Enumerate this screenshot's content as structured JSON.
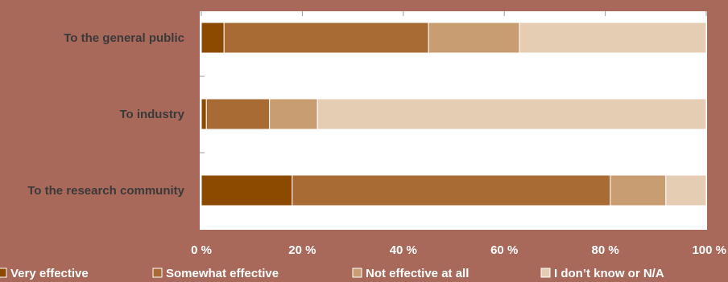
{
  "chart_data": {
    "type": "bar",
    "orientation": "horizontal",
    "stacked": true,
    "percent": true,
    "categories": [
      "To the general public",
      "To industry",
      "To the research community"
    ],
    "series": [
      {
        "name": "Very effective",
        "values": [
          4.5,
          1,
          18
        ],
        "color": "#8b4a00"
      },
      {
        "name": "Somewhat effective",
        "values": [
          40.5,
          12.5,
          63
        ],
        "color": "#a86b34"
      },
      {
        "name": "Not effective at all",
        "values": [
          18,
          9.5,
          11
        ],
        "color": "#c99d72"
      },
      {
        "name": "I don’t know or N/A",
        "values": [
          37,
          77,
          8
        ],
        "color": "#e5cdb4"
      }
    ],
    "xlim": [
      0,
      100
    ],
    "x_ticks": [
      "0 %",
      "20 %",
      "40 %",
      "60 %",
      "80 %",
      "100 %"
    ],
    "grid": false,
    "legend_position": "bottom"
  }
}
